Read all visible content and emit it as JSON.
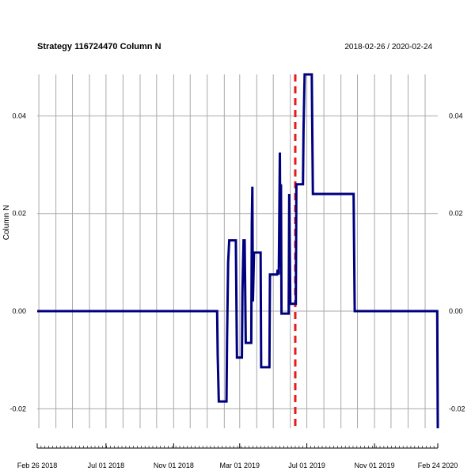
{
  "chart_data": {
    "type": "line",
    "title": "Strategy 116724470 Column N",
    "date_range": "2018-02-26 / 2020-02-24",
    "ylabel": "Column N",
    "xlim": [
      "2018-02-26",
      "2020-02-24"
    ],
    "ylim": [
      -0.024,
      0.0485
    ],
    "yticks": [
      -0.02,
      0.0,
      0.02,
      0.04
    ],
    "ytick_labels": [
      "-0.02",
      "0.00",
      "0.02",
      "0.04"
    ],
    "xtick_labels": [
      {
        "date": "2018-02-26",
        "label": "Feb 26 2018"
      },
      {
        "date": "2018-07-01",
        "label": "Jul 01 2018"
      },
      {
        "date": "2018-11-01",
        "label": "Nov 01 2018"
      },
      {
        "date": "2019-03-01",
        "label": "Mar 01 2019"
      },
      {
        "date": "2019-07-01",
        "label": "Jul 01 2019"
      },
      {
        "date": "2019-11-01",
        "label": "Nov 01 2019"
      },
      {
        "date": "2020-02-24",
        "label": "Feb 24 2020"
      }
    ],
    "grid": true,
    "event_line": {
      "date": "2019-06-10",
      "color": "#e41a1c",
      "style": "dashed"
    },
    "series": [
      {
        "color": "#00007f",
        "points": [
          [
            "2018-02-26",
            0.0
          ],
          [
            "2019-01-19",
            0.0
          ],
          [
            "2019-01-20",
            -0.009
          ],
          [
            "2019-01-22",
            -0.0185
          ],
          [
            "2019-02-05",
            -0.0185
          ],
          [
            "2019-02-06",
            -0.006
          ],
          [
            "2019-02-08",
            0.01
          ],
          [
            "2019-02-10",
            0.0145
          ],
          [
            "2019-02-22",
            0.0145
          ],
          [
            "2019-02-24",
            -0.0095
          ],
          [
            "2019-03-05",
            -0.0095
          ],
          [
            "2019-03-06",
            0.004
          ],
          [
            "2019-03-08",
            0.0145
          ],
          [
            "2019-03-10",
            0.0145
          ],
          [
            "2019-03-12",
            -0.0065
          ],
          [
            "2019-03-22",
            -0.0065
          ],
          [
            "2019-03-23",
            0.018
          ],
          [
            "2019-03-24",
            0.0255
          ],
          [
            "2019-03-25",
            0.002
          ],
          [
            "2019-03-27",
            0.012
          ],
          [
            "2019-04-08",
            0.012
          ],
          [
            "2019-04-09",
            -0.0115
          ],
          [
            "2019-04-24",
            -0.0115
          ],
          [
            "2019-04-25",
            0.0075
          ],
          [
            "2019-05-08",
            0.0075
          ],
          [
            "2019-05-09",
            0.0085
          ],
          [
            "2019-05-11",
            0.0075
          ],
          [
            "2019-05-13",
            0.0325
          ],
          [
            "2019-05-14",
            0.009
          ],
          [
            "2019-05-15",
            0.026
          ],
          [
            "2019-05-16",
            -0.0005
          ],
          [
            "2019-05-29",
            -0.0005
          ],
          [
            "2019-05-30",
            0.024
          ],
          [
            "2019-06-01",
            0.0015
          ],
          [
            "2019-06-11",
            0.0015
          ],
          [
            "2019-06-12",
            0.026
          ],
          [
            "2019-06-24",
            0.026
          ],
          [
            "2019-06-25",
            0.037
          ],
          [
            "2019-06-27",
            0.0485
          ],
          [
            "2019-07-10",
            0.0485
          ],
          [
            "2019-07-11",
            0.036
          ],
          [
            "2019-07-12",
            0.024
          ],
          [
            "2019-09-24",
            0.024
          ],
          [
            "2019-09-25",
            0.012
          ],
          [
            "2019-09-26",
            0.0
          ],
          [
            "2020-02-23",
            0.0
          ],
          [
            "2020-02-24",
            -0.024
          ]
        ]
      }
    ]
  }
}
